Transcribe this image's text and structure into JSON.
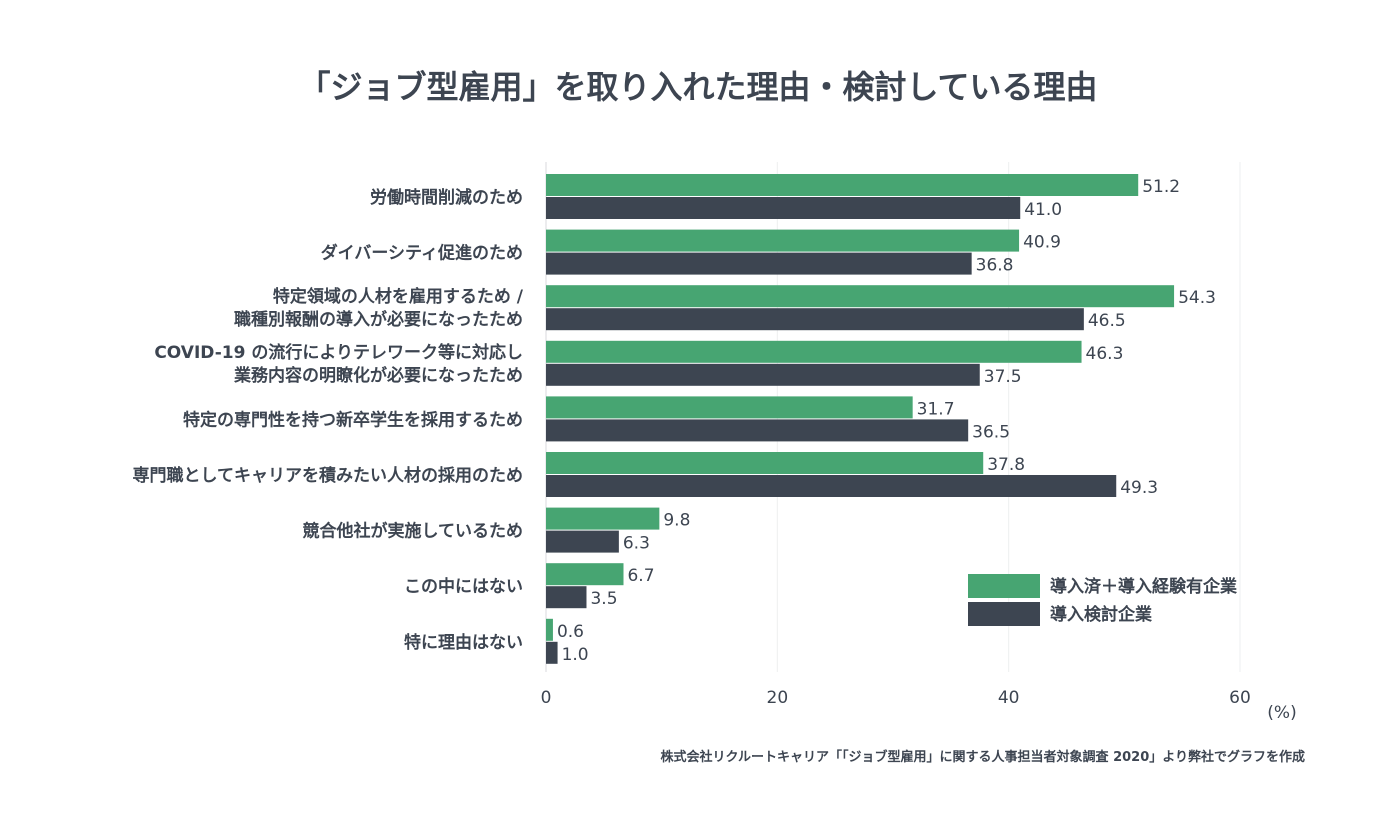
{
  "chart_data": {
    "type": "bar",
    "orientation": "horizontal",
    "title": "「ジョブ型雇用」を取り入れた理由・検討している理由",
    "categories": [
      [
        "労働時間削減のため"
      ],
      [
        "ダイバーシティ促進のため"
      ],
      [
        "特定領域の人材を雇用するため /",
        "職種別報酬の導入が必要になったため"
      ],
      [
        "COVID-19 の流行によりテレワーク等に対応し",
        "業務内容の明瞭化が必要になったため"
      ],
      [
        "特定の専門性を持つ新卒学生を採用するため"
      ],
      [
        "専門職としてキャリアを積みたい人材の採用のため"
      ],
      [
        "競合他社が実施しているため"
      ],
      [
        "この中にはない"
      ],
      [
        "特に理由はない"
      ]
    ],
    "series": [
      {
        "name": "導入済＋導入経験有企業",
        "color": "#47a572",
        "values": [
          51.2,
          40.9,
          54.3,
          46.3,
          31.7,
          37.8,
          9.8,
          6.7,
          0.6
        ],
        "labels": [
          "51.2",
          "40.9",
          "54.3",
          "46.3",
          "31.7",
          "37.8",
          "9.8",
          "6.7",
          "0.6"
        ]
      },
      {
        "name": "導入検討企業",
        "color": "#3d4551",
        "values": [
          41.0,
          36.8,
          46.5,
          37.5,
          36.5,
          49.3,
          6.3,
          3.5,
          1.0
        ],
        "labels": [
          "41.0",
          "36.8",
          "46.5",
          "37.5",
          "36.5",
          "49.3",
          "6.3",
          "3.5",
          "1.0"
        ]
      }
    ],
    "xlim": [
      0,
      60
    ],
    "xticks": [
      "0",
      "20",
      "40",
      "60"
    ],
    "xunit": "(%)",
    "grid": true,
    "legend": "bottom-right",
    "source": "株式会社リクルートキャリア「「ジョブ型雇用」に関する人事担当者対象調査 2020」より弊社でグラフを作成"
  }
}
